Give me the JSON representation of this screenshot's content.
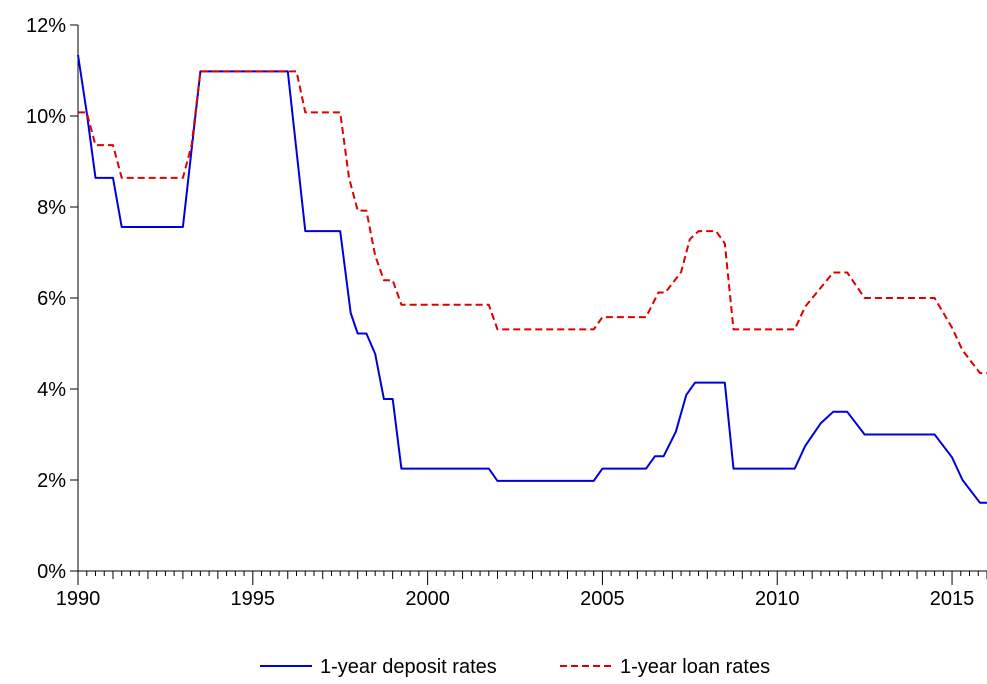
{
  "chart_data": {
    "type": "line",
    "title": "",
    "xlabel": "",
    "ylabel": "",
    "xlim": [
      1990,
      2016
    ],
    "ylim": [
      0,
      12
    ],
    "x_ticks": [
      1990,
      1995,
      2000,
      2005,
      2010,
      2015
    ],
    "x_tick_labels": [
      "1990",
      "1995",
      "2000",
      "2005",
      "2010",
      "2015"
    ],
    "y_ticks": [
      0,
      2,
      4,
      6,
      8,
      10,
      12
    ],
    "y_tick_labels": [
      "0%",
      "2%",
      "4%",
      "6%",
      "8%",
      "10%",
      "12%"
    ],
    "grid": false,
    "legend_position": "bottom",
    "series": [
      {
        "name": "1-year deposit rates",
        "color": "#0000dd",
        "style": "solid",
        "points": [
          [
            1990.0,
            11.34
          ],
          [
            1990.25,
            10.08
          ],
          [
            1990.5,
            8.64
          ],
          [
            1991.0,
            8.64
          ],
          [
            1991.25,
            7.56
          ],
          [
            1993.0,
            7.56
          ],
          [
            1993.5,
            10.98
          ],
          [
            1996.0,
            10.98
          ],
          [
            1996.5,
            7.47
          ],
          [
            1997.5,
            7.47
          ],
          [
            1997.8,
            5.67
          ],
          [
            1998.0,
            5.22
          ],
          [
            1998.25,
            5.22
          ],
          [
            1998.5,
            4.77
          ],
          [
            1998.75,
            3.78
          ],
          [
            1999.0,
            3.78
          ],
          [
            1999.25,
            2.25
          ],
          [
            2001.75,
            2.25
          ],
          [
            2002.0,
            1.98
          ],
          [
            2004.75,
            1.98
          ],
          [
            2005.0,
            2.25
          ],
          [
            2006.25,
            2.25
          ],
          [
            2006.5,
            2.52
          ],
          [
            2006.75,
            2.52
          ],
          [
            2007.1,
            3.06
          ],
          [
            2007.4,
            3.87
          ],
          [
            2007.65,
            4.14
          ],
          [
            2008.5,
            4.14
          ],
          [
            2008.75,
            2.25
          ],
          [
            2010.5,
            2.25
          ],
          [
            2010.8,
            2.75
          ],
          [
            2011.25,
            3.25
          ],
          [
            2011.6,
            3.5
          ],
          [
            2012.0,
            3.5
          ],
          [
            2012.5,
            3.0
          ],
          [
            2014.5,
            3.0
          ],
          [
            2015.0,
            2.5
          ],
          [
            2015.3,
            2.0
          ],
          [
            2015.8,
            1.5
          ],
          [
            2016.0,
            1.5
          ]
        ]
      },
      {
        "name": "1-year loan rates",
        "color": "#dd0000",
        "style": "dashed",
        "points": [
          [
            1990.0,
            10.08
          ],
          [
            1990.25,
            10.08
          ],
          [
            1990.5,
            9.36
          ],
          [
            1991.0,
            9.36
          ],
          [
            1991.25,
            8.64
          ],
          [
            1993.0,
            8.64
          ],
          [
            1993.25,
            9.36
          ],
          [
            1993.5,
            10.98
          ],
          [
            1996.25,
            10.98
          ],
          [
            1996.5,
            10.08
          ],
          [
            1997.5,
            10.08
          ],
          [
            1997.75,
            8.64
          ],
          [
            1998.0,
            7.92
          ],
          [
            1998.25,
            7.92
          ],
          [
            1998.5,
            6.93
          ],
          [
            1998.75,
            6.39
          ],
          [
            1999.0,
            6.39
          ],
          [
            1999.25,
            5.85
          ],
          [
            2001.75,
            5.85
          ],
          [
            2002.0,
            5.31
          ],
          [
            2004.75,
            5.31
          ],
          [
            2005.0,
            5.58
          ],
          [
            2006.25,
            5.58
          ],
          [
            2006.6,
            6.12
          ],
          [
            2006.8,
            6.12
          ],
          [
            2007.25,
            6.57
          ],
          [
            2007.5,
            7.29
          ],
          [
            2007.75,
            7.47
          ],
          [
            2008.25,
            7.47
          ],
          [
            2008.5,
            7.2
          ],
          [
            2008.75,
            5.31
          ],
          [
            2010.5,
            5.31
          ],
          [
            2010.8,
            5.81
          ],
          [
            2011.6,
            6.56
          ],
          [
            2012.0,
            6.56
          ],
          [
            2012.5,
            6.0
          ],
          [
            2014.5,
            6.0
          ],
          [
            2015.0,
            5.35
          ],
          [
            2015.3,
            4.85
          ],
          [
            2015.8,
            4.35
          ],
          [
            2016.0,
            4.35
          ]
        ]
      }
    ]
  }
}
